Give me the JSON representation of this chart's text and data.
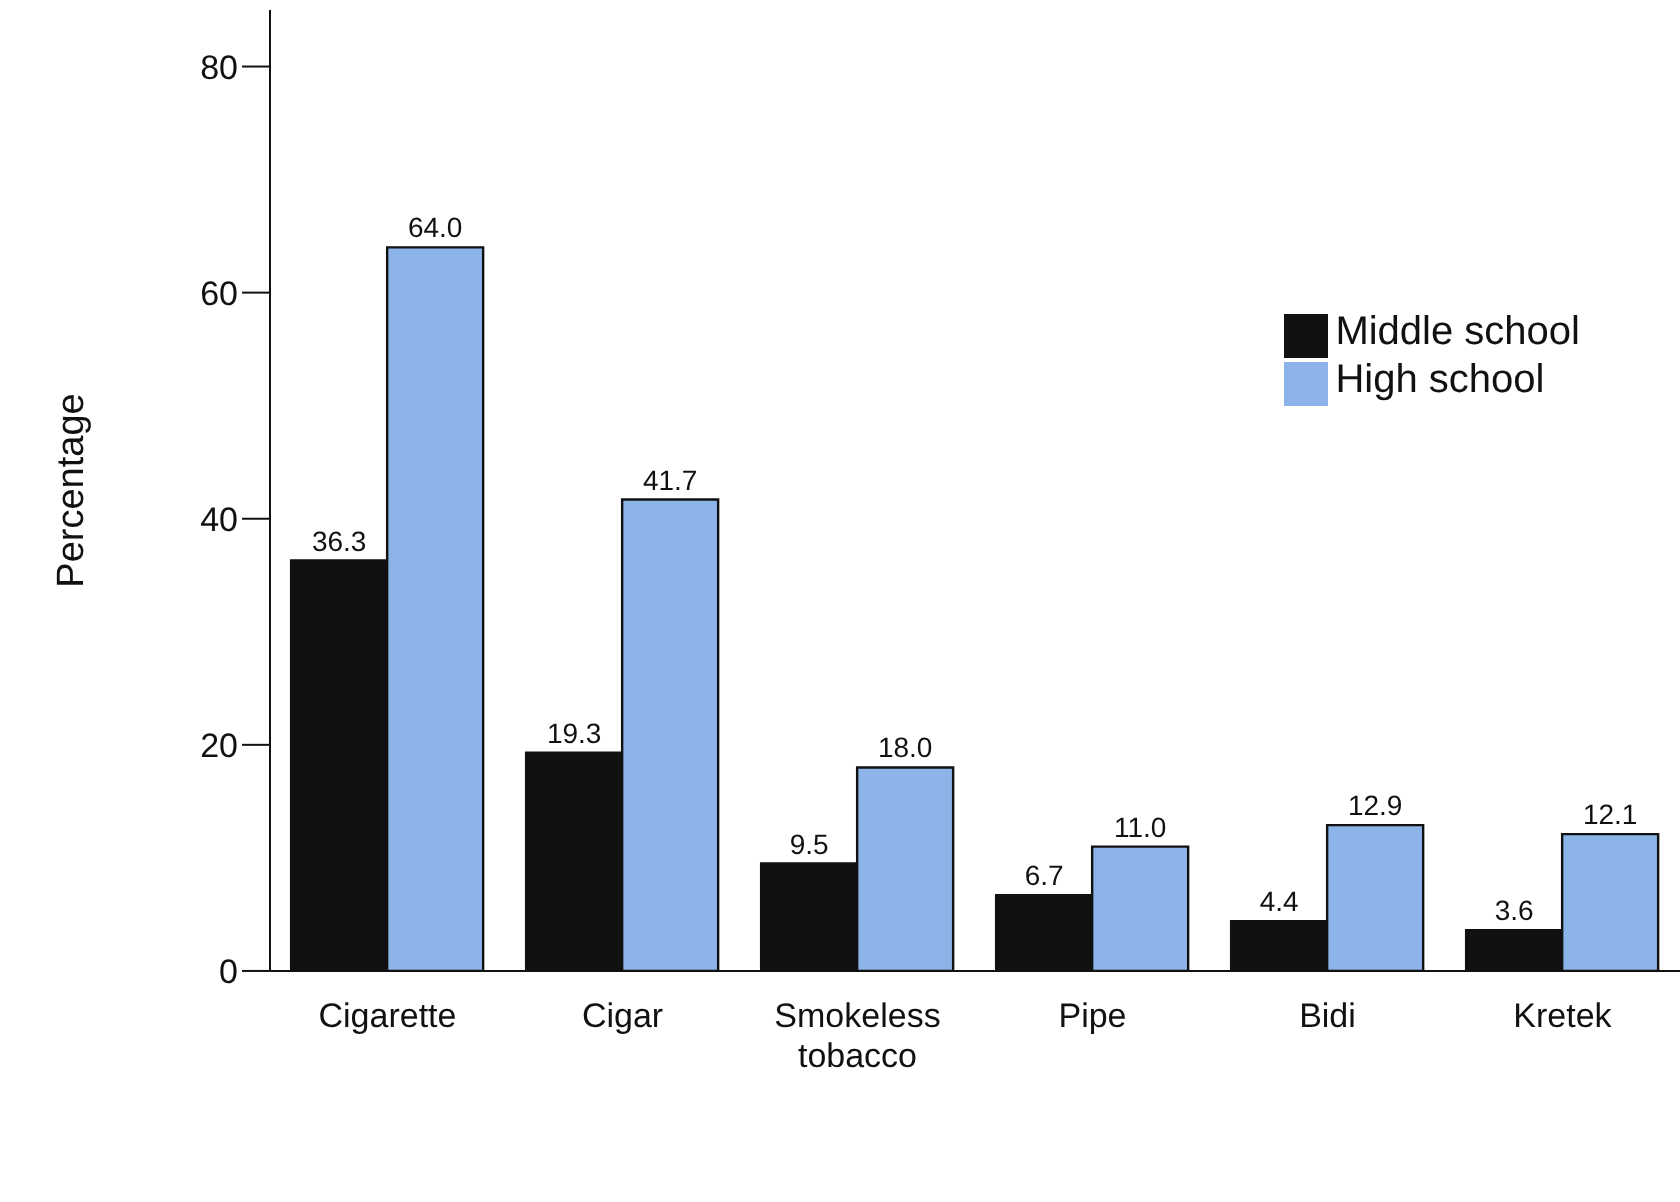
{
  "chart_data": {
    "type": "bar",
    "ylabel": "Percentage",
    "categories": [
      "Cigarette",
      "Cigar",
      "Smokeless tobacco",
      "Pipe",
      "Bidi",
      "Kretek"
    ],
    "series": [
      {
        "name": "Middle school",
        "color": "#111111",
        "values": [
          36.3,
          19.3,
          9.5,
          6.7,
          4.4,
          3.6
        ],
        "value_labels": [
          "36.3",
          "19.3",
          "9.5",
          "6.7",
          "4.4",
          "3.6"
        ]
      },
      {
        "name": "High school",
        "color": "#8db4e8",
        "values": [
          64.0,
          41.7,
          18.0,
          11.0,
          12.9,
          12.1
        ],
        "value_labels": [
          "64.0",
          "41.7",
          "18.0",
          "11.0",
          "12.9",
          "12.1"
        ]
      }
    ],
    "ylim": [
      0,
      85
    ],
    "yticks": [
      0,
      20,
      40,
      60,
      80
    ],
    "grid": false,
    "legend": "top right"
  }
}
